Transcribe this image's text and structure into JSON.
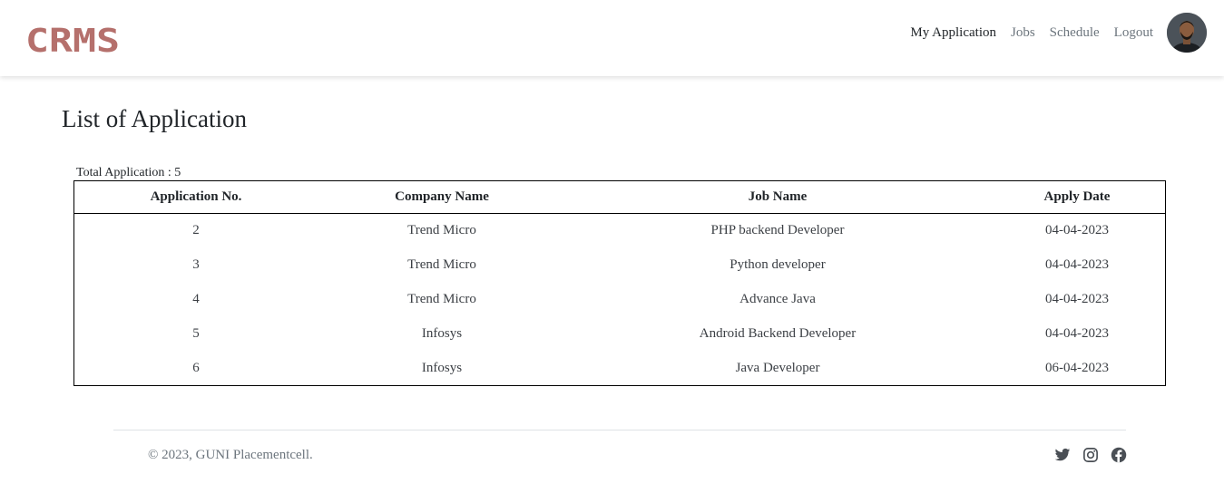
{
  "header": {
    "logo_text": "CRMS",
    "nav": [
      {
        "label": "My Application",
        "active": true
      },
      {
        "label": "Jobs",
        "active": false
      },
      {
        "label": "Schedule",
        "active": false
      },
      {
        "label": "Logout",
        "active": false
      }
    ]
  },
  "main": {
    "title": "List of Application",
    "total_label": "Total Application : 5",
    "table": {
      "columns": [
        "Application No.",
        "Company Name",
        "Job Name",
        "Apply Date"
      ],
      "rows": [
        [
          "2",
          "Trend Micro",
          "PHP backend Developer",
          "04-04-2023"
        ],
        [
          "3",
          "Trend Micro",
          "Python developer",
          "04-04-2023"
        ],
        [
          "4",
          "Trend Micro",
          "Advance Java",
          "04-04-2023"
        ],
        [
          "5",
          "Infosys",
          "Android Backend Developer",
          "04-04-2023"
        ],
        [
          "6",
          "Infosys",
          "Java Developer",
          "06-04-2023"
        ]
      ]
    }
  },
  "footer": {
    "copyright": "© 2023, GUNI Placementcell.",
    "social_icons": [
      "twitter-icon",
      "instagram-icon",
      "facebook-icon"
    ]
  },
  "colors": {
    "logo": "#b5706c",
    "nav_active": "#212529",
    "nav_muted": "#6c757d",
    "icon": "#4a4f55"
  }
}
